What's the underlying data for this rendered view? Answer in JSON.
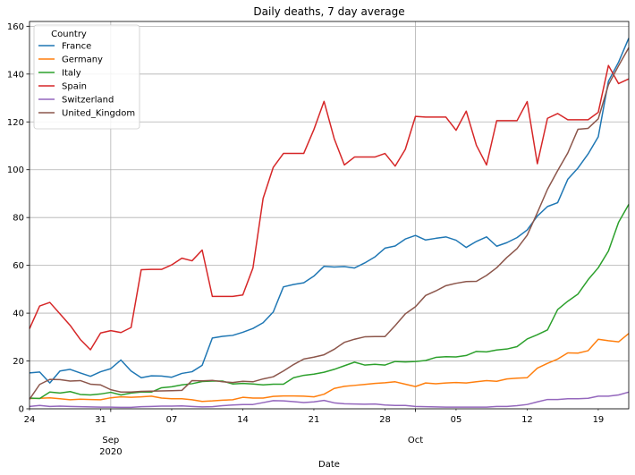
{
  "chart_data": {
    "type": "line",
    "title": "Daily deaths, 7 day average",
    "xlabel": "Date",
    "ylabel": "",
    "ylim": [
      0,
      162
    ],
    "yticks": [
      0,
      20,
      40,
      60,
      80,
      100,
      120,
      140,
      160
    ],
    "grid": true,
    "legend": {
      "title": "Country",
      "placement": "top-left"
    },
    "x_major_ticks": [
      {
        "label": "Sep",
        "sublabel": "2020",
        "date": "2020-09-01"
      },
      {
        "label": "Oct",
        "sublabel": "",
        "date": "2020-10-01"
      }
    ],
    "x_minor_ticks": [
      {
        "label": "24",
        "date": "2020-08-24"
      },
      {
        "label": "31",
        "date": "2020-08-31"
      },
      {
        "label": "07",
        "date": "2020-09-07"
      },
      {
        "label": "14",
        "date": "2020-09-14"
      },
      {
        "label": "21",
        "date": "2020-09-21"
      },
      {
        "label": "28",
        "date": "2020-09-28"
      },
      {
        "label": "05",
        "date": "2020-10-05"
      },
      {
        "label": "12",
        "date": "2020-10-12"
      },
      {
        "label": "19",
        "date": "2020-10-19"
      }
    ],
    "dates": [
      "2020-08-24",
      "2020-08-25",
      "2020-08-26",
      "2020-08-27",
      "2020-08-28",
      "2020-08-29",
      "2020-08-30",
      "2020-08-31",
      "2020-09-01",
      "2020-09-02",
      "2020-09-03",
      "2020-09-04",
      "2020-09-05",
      "2020-09-06",
      "2020-09-07",
      "2020-09-08",
      "2020-09-09",
      "2020-09-10",
      "2020-09-11",
      "2020-09-12",
      "2020-09-13",
      "2020-09-14",
      "2020-09-15",
      "2020-09-16",
      "2020-09-17",
      "2020-09-18",
      "2020-09-19",
      "2020-09-20",
      "2020-09-21",
      "2020-09-22",
      "2020-09-23",
      "2020-09-24",
      "2020-09-25",
      "2020-09-26",
      "2020-09-27",
      "2020-09-28",
      "2020-09-29",
      "2020-09-30",
      "2020-10-01",
      "2020-10-02",
      "2020-10-03",
      "2020-10-04",
      "2020-10-05",
      "2020-10-06",
      "2020-10-07",
      "2020-10-08",
      "2020-10-09",
      "2020-10-10",
      "2020-10-11",
      "2020-10-12",
      "2020-10-13",
      "2020-10-14",
      "2020-10-15",
      "2020-10-16",
      "2020-10-17",
      "2020-10-18",
      "2020-10-19",
      "2020-10-20",
      "2020-10-21",
      "2020-10-22"
    ],
    "series": [
      {
        "name": "France",
        "color": "#1f77b4",
        "values": [
          15.0,
          15.4,
          10.8,
          15.8,
          16.5,
          15.0,
          13.6,
          15.5,
          16.8,
          20.4,
          15.8,
          13.0,
          13.8,
          13.7,
          13.2,
          14.8,
          15.5,
          18.2,
          29.6,
          30.3,
          30.7,
          32.0,
          33.6,
          36.0,
          40.5,
          51.0,
          52.0,
          52.7,
          55.5,
          59.6,
          59.3,
          59.5,
          58.9,
          61.0,
          63.5,
          67.2,
          68.1,
          71.0,
          72.5,
          70.6,
          71.3,
          71.9,
          70.5,
          67.5,
          70.0,
          71.9,
          68.0,
          69.5,
          71.6,
          74.8,
          80.6,
          84.6,
          86.2,
          96.0,
          100.7,
          106.6,
          113.8,
          137.0,
          145.0,
          155.0
        ]
      },
      {
        "name": "Germany",
        "color": "#ff7f0e",
        "values": [
          4.3,
          4.4,
          4.6,
          4.2,
          3.8,
          4.0,
          3.9,
          3.8,
          4.6,
          5.0,
          4.8,
          5.0,
          5.3,
          4.5,
          4.2,
          4.2,
          3.8,
          3.1,
          3.3,
          3.6,
          3.8,
          4.8,
          4.5,
          4.5,
          5.2,
          5.4,
          5.4,
          5.3,
          5.0,
          6.1,
          8.5,
          9.4,
          9.8,
          10.2,
          10.6,
          10.9,
          11.3,
          10.3,
          9.3,
          10.8,
          10.5,
          10.8,
          11.0,
          10.8,
          11.3,
          11.8,
          11.5,
          12.5,
          12.8,
          13.0,
          17.0,
          19.0,
          20.8,
          23.4,
          23.3,
          24.3,
          29.1,
          28.5,
          28.0,
          31.5
        ]
      },
      {
        "name": "Italy",
        "color": "#2ca02c",
        "values": [
          4.5,
          4.3,
          7.0,
          6.6,
          7.2,
          6.0,
          5.8,
          6.2,
          6.9,
          5.8,
          6.6,
          7.0,
          7.0,
          8.8,
          9.2,
          10.0,
          10.5,
          11.4,
          11.6,
          11.6,
          10.4,
          10.6,
          10.4,
          10.0,
          10.3,
          10.3,
          13.0,
          14.0,
          14.5,
          15.3,
          16.5,
          18.0,
          19.5,
          18.3,
          18.6,
          18.3,
          19.8,
          19.6,
          19.8,
          20.2,
          21.5,
          21.8,
          21.7,
          22.3,
          24.0,
          23.8,
          24.6,
          25.0,
          26.0,
          29.2,
          31.0,
          33.0,
          41.5,
          45.0,
          48.0,
          54.0,
          59.0,
          66.0,
          78.0,
          85.5
        ]
      },
      {
        "name": "Spain",
        "color": "#d62728",
        "values": [
          33.5,
          43.0,
          44.5,
          39.7,
          34.9,
          29.0,
          24.7,
          31.7,
          32.7,
          31.9,
          34.0,
          58.2,
          58.3,
          58.3,
          60.2,
          63.0,
          61.9,
          66.4,
          47.0,
          47.0,
          47.0,
          47.6,
          58.9,
          88.0,
          101.0,
          106.8,
          106.8,
          106.8,
          116.8,
          128.6,
          113.0,
          102.0,
          105.3,
          105.3,
          105.3,
          106.8,
          101.5,
          108.5,
          122.3,
          122.0,
          122.0,
          122.0,
          116.5,
          124.5,
          110.2,
          102.0,
          120.5,
          120.5,
          120.5,
          128.5,
          102.5,
          121.5,
          123.5,
          120.9,
          120.9,
          120.9,
          124.0,
          143.6,
          136.0,
          138.0
        ]
      },
      {
        "name": "Switzerland",
        "color": "#9467bd",
        "values": [
          1.0,
          1.4,
          1.0,
          1.1,
          1.0,
          0.9,
          0.8,
          0.7,
          0.7,
          0.6,
          0.6,
          0.9,
          1.0,
          1.1,
          1.1,
          1.2,
          1.0,
          0.8,
          0.9,
          1.3,
          1.6,
          1.8,
          1.8,
          2.6,
          3.4,
          3.3,
          3.0,
          2.6,
          2.9,
          3.5,
          2.5,
          2.1,
          2.0,
          1.9,
          2.0,
          1.6,
          1.4,
          1.4,
          1.0,
          0.9,
          0.8,
          0.7,
          0.7,
          0.7,
          0.7,
          0.7,
          1.0,
          1.0,
          1.3,
          1.8,
          2.9,
          3.9,
          3.9,
          4.2,
          4.2,
          4.4,
          5.3,
          5.3,
          5.8,
          7.0
        ]
      },
      {
        "name": "United_Kingdom",
        "color": "#8c564b",
        "values": [
          4.0,
          10.2,
          12.3,
          12.2,
          11.6,
          11.8,
          10.3,
          10.0,
          8.0,
          7.0,
          7.0,
          7.3,
          7.4,
          7.5,
          7.6,
          7.7,
          11.8,
          11.7,
          11.9,
          11.3,
          11.0,
          11.5,
          11.3,
          12.5,
          13.4,
          15.8,
          18.5,
          20.8,
          21.6,
          22.6,
          24.9,
          27.8,
          29.1,
          30.1,
          30.2,
          30.2,
          34.8,
          39.7,
          42.7,
          47.4,
          49.3,
          51.5,
          52.5,
          53.2,
          53.3,
          55.8,
          59.0,
          63.3,
          67.0,
          72.6,
          82.0,
          91.8,
          99.6,
          107.0,
          116.9,
          117.3,
          121.3,
          135.5,
          143.5,
          151.0
        ]
      }
    ]
  }
}
